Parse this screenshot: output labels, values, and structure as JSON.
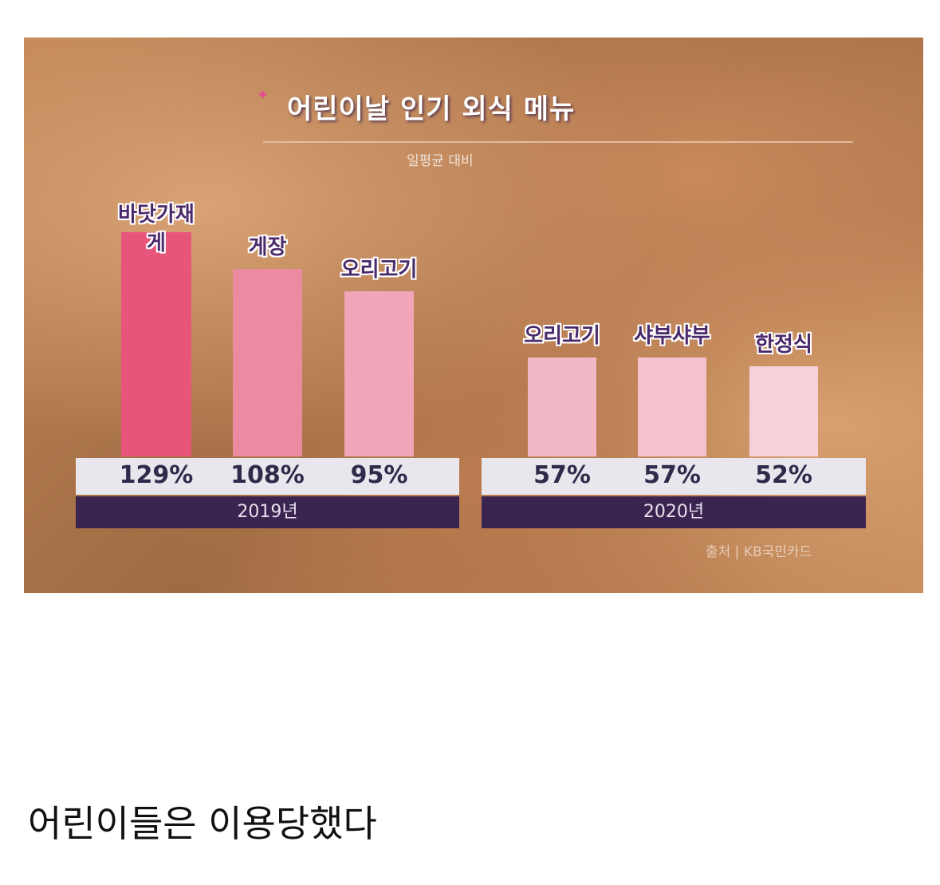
{
  "chart_data": {
    "type": "bar",
    "title": "어린이날 인기 외식 메뉴",
    "subtitle": "일평균 대비",
    "groups": [
      {
        "name": "2019년",
        "categories": [
          "바닷가재·게",
          "게장",
          "오리고기"
        ],
        "values": [
          129,
          108,
          95
        ],
        "labels": [
          "129%",
          "108%",
          "95%"
        ],
        "colors": [
          "#e8557a",
          "#ec8aa2",
          "#f0a5b8"
        ]
      },
      {
        "name": "2020년",
        "categories": [
          "오리고기",
          "샤부샤부",
          "한정식"
        ],
        "values": [
          57,
          57,
          52
        ],
        "labels": [
          "57%",
          "57%",
          "52%"
        ],
        "colors": [
          "#f2b8c6",
          "#f4c2cd",
          "#f5d2da"
        ]
      }
    ],
    "ylim": [
      0,
      140
    ],
    "grid": false,
    "source": "출처 | KB국민카드"
  },
  "caption": "어린이들은 이용당했다"
}
